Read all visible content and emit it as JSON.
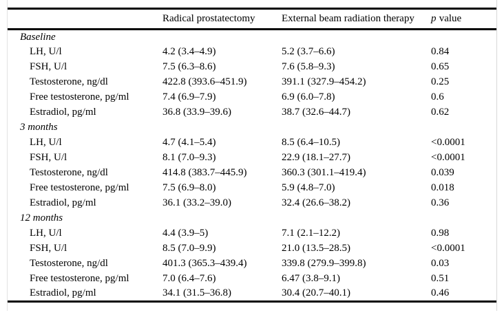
{
  "table": {
    "header": {
      "col_rp": "Radical prostatectomy",
      "col_ebrt": "External beam radiation therapy",
      "p_symbol": "p",
      "p_word": "value"
    },
    "sections": [
      {
        "label": "Baseline",
        "rows": [
          {
            "param": "LH, U/l",
            "rp": "4.2 (3.4–4.9)",
            "ebrt": "5.2 (3.7–6.6)",
            "p": "0.84"
          },
          {
            "param": "FSH, U/l",
            "rp": "7.5 (6.3–8.6)",
            "ebrt": "7.6 (5.8–9.3)",
            "p": "0.65"
          },
          {
            "param": "Testosterone, ng/dl",
            "rp": "422.8 (393.6–451.9)",
            "ebrt": "391.1 (327.9–454.2)",
            "p": "0.25"
          },
          {
            "param": "Free testosterone, pg/ml",
            "rp": "7.4 (6.9–7.9)",
            "ebrt": "6.9 (6.0–7.8)",
            "p": "0.6"
          },
          {
            "param": "Estradiol, pg/ml",
            "rp": "36.8 (33.9–39.6)",
            "ebrt": "38.7 (32.6–44.7)",
            "p": "0.62"
          }
        ]
      },
      {
        "label": "3 months",
        "rows": [
          {
            "param": "LH, U/l",
            "rp": "4.7 (4.1–5.4)",
            "ebrt": "8.5 (6.4–10.5)",
            "p": "<0.0001"
          },
          {
            "param": "FSH, U/l",
            "rp": "8.1 (7.0–9.3)",
            "ebrt": "22.9 (18.1–27.7)",
            "p": "<0.0001"
          },
          {
            "param": "Testosterone, ng/dl",
            "rp": "414.8 (383.7–445.9)",
            "ebrt": "360.3 (301.1–419.4)",
            "p": "0.039"
          },
          {
            "param": "Free testosterone, pg/ml",
            "rp": "7.5 (6.9–8.0)",
            "ebrt": "5.9 (4.8–7.0)",
            "p": "0.018"
          },
          {
            "param": "Estradiol, pg/ml",
            "rp": "36.1 (33.2–39.0)",
            "ebrt": "32.4 (26.6–38.2)",
            "p": "0.36"
          }
        ]
      },
      {
        "label": "12 months",
        "rows": [
          {
            "param": "LH, U/l",
            "rp": "4.4 (3.9–5)",
            "ebrt": "7.1 (2.1–12.2)",
            "p": "0.98"
          },
          {
            "param": "FSH, U/l",
            "rp": "8.5 (7.0–9.9)",
            "ebrt": "21.0 (13.5–28.5)",
            "p": "<0.0001"
          },
          {
            "param": "Testosterone, ng/dl",
            "rp": "401.3 (365.3–439.4)",
            "ebrt": "339.8 (279.9–399.8)",
            "p": "0.03"
          },
          {
            "param": "Free testosterone, pg/ml",
            "rp": "7.0 (6.4–7.6)",
            "ebrt": "6.47 (3.8–9.1)",
            "p": "0.51"
          },
          {
            "param": "Estradiol, pg/ml",
            "rp": "34.1 (31.5–36.8)",
            "ebrt": "30.4 (20.7–40.1)",
            "p": "0.46"
          }
        ]
      }
    ]
  }
}
